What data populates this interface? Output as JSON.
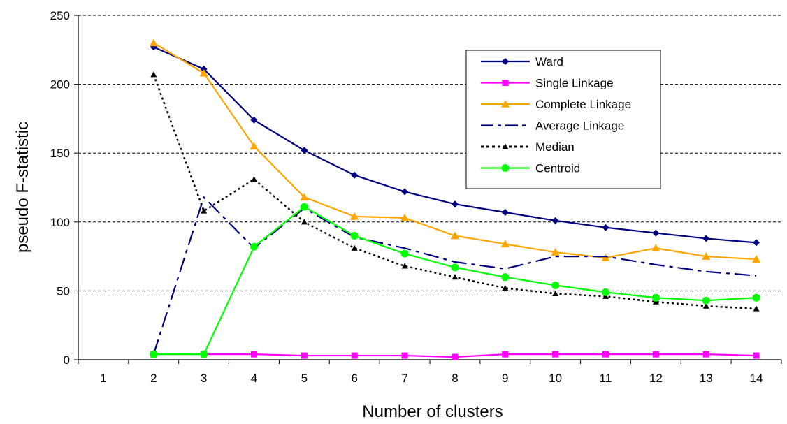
{
  "chart_data": {
    "type": "line",
    "title": "",
    "xlabel": "Number of clusters",
    "ylabel": "pseudo F-statistic",
    "categories": [
      "1",
      "2",
      "3",
      "4",
      "5",
      "6",
      "7",
      "8",
      "9",
      "10",
      "11",
      "12",
      "13",
      "14"
    ],
    "ylim": [
      0,
      250
    ],
    "yticks": [
      0,
      50,
      100,
      150,
      200,
      250
    ],
    "grid": "horizontal-dashed",
    "legend_position": "top-right",
    "series": [
      {
        "name": "Ward",
        "color": "#000080",
        "line": "solid",
        "marker": "diamond",
        "values": [
          null,
          227,
          211,
          174,
          152,
          134,
          122,
          113,
          107,
          101,
          96,
          92,
          88,
          85
        ]
      },
      {
        "name": "Single Linkage",
        "color": "#FF00FF",
        "line": "solid",
        "marker": "square",
        "values": [
          null,
          4,
          4,
          4,
          3,
          3,
          3,
          2,
          4,
          4,
          4,
          4,
          4,
          3
        ]
      },
      {
        "name": "Complete Linkage",
        "color": "#FFA500",
        "line": "solid",
        "marker": "triangle",
        "values": [
          null,
          230,
          208,
          155,
          118,
          104,
          103,
          90,
          84,
          78,
          74,
          81,
          75,
          73
        ]
      },
      {
        "name": "Average Linkage",
        "color": "#000080",
        "line": "dash-dot",
        "marker": "none",
        "values": [
          null,
          4,
          118,
          81,
          110,
          89,
          81,
          71,
          66,
          75,
          75,
          69,
          64,
          61
        ]
      },
      {
        "name": "Median",
        "color": "#000000",
        "line": "dotted",
        "marker": "triangle",
        "values": [
          null,
          207,
          108,
          131,
          100,
          81,
          68,
          60,
          52,
          48,
          46,
          42,
          39,
          37
        ]
      },
      {
        "name": "Centroid",
        "color": "#00FF00",
        "line": "solid",
        "marker": "circle",
        "values": [
          null,
          4,
          4,
          82,
          111,
          90,
          77,
          67,
          60,
          54,
          49,
          45,
          43,
          45
        ]
      }
    ]
  }
}
